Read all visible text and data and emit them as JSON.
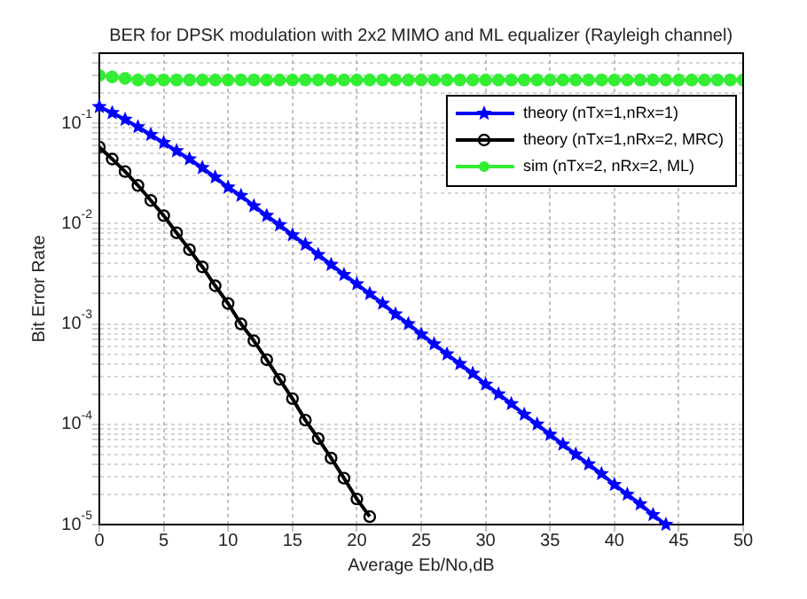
{
  "chart_data": {
    "type": "line",
    "title": "BER for DPSK modulation with 2x2 MIMO and ML equalizer (Rayleigh channel)",
    "xlabel": "Average Eb/No,dB",
    "ylabel": "Bit Error Rate",
    "log": "y",
    "grid": true,
    "legend": "top right",
    "line_style": "solid",
    "xlim": [
      0,
      50
    ],
    "xticks": [
      0,
      5,
      10,
      15,
      20,
      25,
      30,
      35,
      40,
      45,
      50
    ],
    "ylim": [
      1e-05,
      0.5
    ],
    "yticks": [
      {
        "value": 1e-05,
        "label": "10$^{-5}$"
      },
      {
        "value": 2e-05,
        "label": null
      },
      {
        "value": 3e-05,
        "label": null
      },
      {
        "value": 4e-05,
        "label": null
      },
      {
        "value": 5e-05,
        "label": null
      },
      {
        "value": 6e-05,
        "label": null
      },
      {
        "value": 7e-05,
        "label": null
      },
      {
        "value": 8e-05,
        "label": null
      },
      {
        "value": 9e-05,
        "label": null
      },
      {
        "value": 0.0001,
        "label": "10$^{-4}$"
      },
      {
        "value": 0.0002,
        "label": null
      },
      {
        "value": 0.0003,
        "label": null
      },
      {
        "value": 0.0004,
        "label": null
      },
      {
        "value": 0.0005,
        "label": null
      },
      {
        "value": 0.0006,
        "label": null
      },
      {
        "value": 0.0007,
        "label": null
      },
      {
        "value": 0.0008,
        "label": null
      },
      {
        "value": 0.0009,
        "label": null
      },
      {
        "value": 0.001,
        "label": "10$^{-3}$"
      },
      {
        "value": 0.002,
        "label": null
      },
      {
        "value": 0.003,
        "label": null
      },
      {
        "value": 0.004,
        "label": null
      },
      {
        "value": 0.005,
        "label": null
      },
      {
        "value": 0.006,
        "label": null
      },
      {
        "value": 0.007,
        "label": null
      },
      {
        "value": 0.008,
        "label": null
      },
      {
        "value": 0.009,
        "label": null
      },
      {
        "value": 0.01,
        "label": "10$^{-2}$"
      },
      {
        "value": 0.02,
        "label": null
      },
      {
        "value": 0.03,
        "label": null
      },
      {
        "value": 0.04,
        "label": null
      },
      {
        "value": 0.05,
        "label": null
      },
      {
        "value": 0.06,
        "label": null
      },
      {
        "value": 0.07,
        "label": null
      },
      {
        "value": 0.08,
        "label": null
      },
      {
        "value": 0.09,
        "label": null
      },
      {
        "value": 0.1,
        "label": "10$^{-1}$"
      },
      {
        "value": 0.2,
        "label": null
      },
      {
        "value": 0.3,
        "label": null
      },
      {
        "value": 0.4,
        "label": null
      },
      {
        "value": 0.5,
        "label": null
      }
    ],
    "series": [
      {
        "name": "theory (nTx=1,nRx=1)",
        "color": "#0000ff",
        "marker": "star",
        "x": [
          0,
          1,
          2,
          3,
          4,
          5,
          6,
          7,
          8,
          9,
          10,
          11,
          12,
          13,
          14,
          15,
          16,
          17,
          18,
          19,
          20,
          21,
          22,
          23,
          24,
          25,
          26,
          27,
          28,
          29,
          30,
          31,
          32,
          33,
          34,
          35,
          36,
          37,
          38,
          39,
          40,
          41,
          42,
          43,
          44
        ],
        "values": [
          0.146,
          0.127,
          0.109,
          0.092,
          0.077,
          0.064,
          0.053,
          0.044,
          0.036,
          0.029,
          0.023,
          0.019,
          0.015,
          0.012,
          0.0097,
          0.0077,
          0.0062,
          0.0049,
          0.0039,
          0.0031,
          0.0025,
          0.002,
          0.0016,
          0.00125,
          0.001,
          0.00079,
          0.00063,
          0.0005,
          0.0004,
          0.00032,
          0.00025,
          0.0002,
          0.00016,
          0.000125,
          0.0001,
          7.9e-05,
          6.3e-05,
          5e-05,
          4e-05,
          3.2e-05,
          2.5e-05,
          2e-05,
          1.6e-05,
          1.25e-05,
          1e-05
        ]
      },
      {
        "name": "theory (nTx=1,nRx=2, MRC)",
        "color": "#000000",
        "marker": "circle",
        "x": [
          0,
          1,
          2,
          3,
          4,
          5,
          6,
          7,
          8,
          9,
          10,
          11,
          12,
          13,
          14,
          15,
          16,
          17,
          18,
          19,
          20,
          21
        ],
        "values": [
          0.058,
          0.044,
          0.033,
          0.024,
          0.017,
          0.012,
          0.0081,
          0.0055,
          0.0037,
          0.0024,
          0.0016,
          0.001,
          0.00068,
          0.00044,
          0.00028,
          0.00018,
          0.00011,
          7.2e-05,
          4.6e-05,
          2.9e-05,
          1.8e-05,
          1.2e-05
        ]
      },
      {
        "name": "sim (nTx=2, nRx=2, ML)",
        "color": "#33ee33",
        "marker": "circle",
        "x": [
          0,
          1,
          2,
          3,
          4,
          5,
          6,
          7,
          8,
          9,
          10,
          11,
          12,
          13,
          14,
          15,
          16,
          17,
          18,
          19,
          20,
          21,
          22,
          23,
          24,
          25,
          26,
          27,
          28,
          29,
          30,
          31,
          32,
          33,
          34,
          35,
          36,
          37,
          38,
          39,
          40,
          41,
          42,
          43,
          44,
          45,
          46,
          47,
          48,
          49,
          50
        ],
        "values": [
          0.3,
          0.29,
          0.28,
          0.27,
          0.27,
          0.27,
          0.27,
          0.27,
          0.27,
          0.27,
          0.27,
          0.27,
          0.27,
          0.27,
          0.27,
          0.27,
          0.27,
          0.27,
          0.27,
          0.27,
          0.27,
          0.27,
          0.27,
          0.27,
          0.27,
          0.27,
          0.27,
          0.27,
          0.27,
          0.27,
          0.27,
          0.27,
          0.27,
          0.27,
          0.27,
          0.27,
          0.27,
          0.27,
          0.27,
          0.27,
          0.27,
          0.27,
          0.27,
          0.27,
          0.27,
          0.27,
          0.27,
          0.27,
          0.27,
          0.27,
          0.27
        ]
      }
    ]
  }
}
